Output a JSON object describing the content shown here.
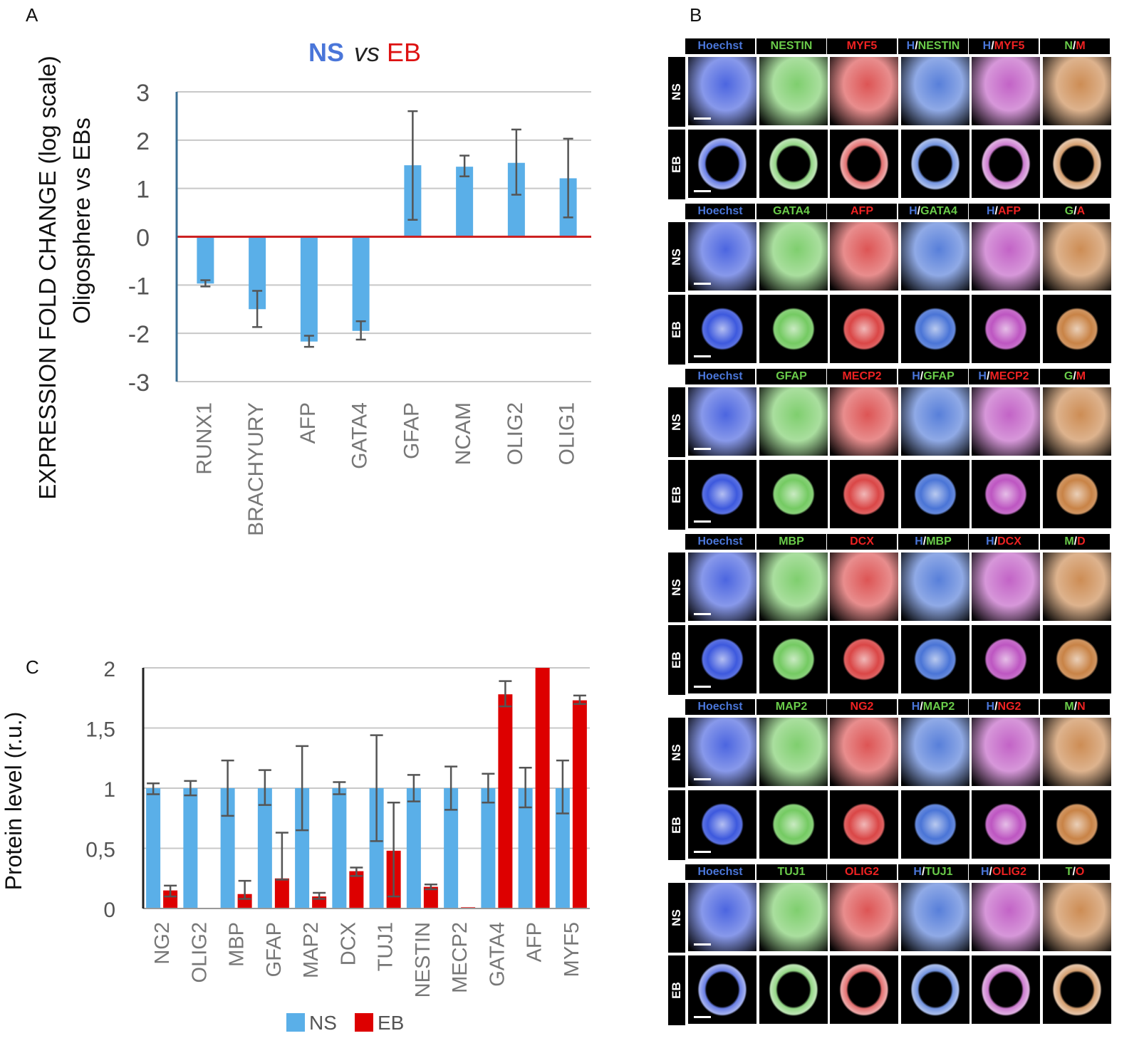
{
  "panels": {
    "a": "A",
    "b": "B",
    "c": "C"
  },
  "chart_data": [
    {
      "type": "bar",
      "title": {
        "ns": "NS",
        "vs": "vs",
        "eb": "EB"
      },
      "ylabel": [
        "EXPRESSION FOLD CHANGE (log scale)",
        "Oligosphere vs EBs"
      ],
      "xlabel": "",
      "ylim": [
        -3,
        3
      ],
      "yticks": [
        "-3",
        "-2",
        "-1",
        "0",
        "1",
        "2",
        "3"
      ],
      "categories": [
        "RUNX1",
        "BRACHYURY",
        "AFP",
        "GATA4",
        "GFAP",
        "NCAM",
        "OLIG2",
        "OLIG1"
      ],
      "values": [
        -0.97,
        -1.5,
        -2.17,
        -1.95,
        1.48,
        1.45,
        1.53,
        1.21
      ],
      "error_low": [
        -1.03,
        -1.87,
        -2.28,
        -2.13,
        0.35,
        1.25,
        0.87,
        0.4
      ],
      "error_high": [
        -0.9,
        -1.12,
        -2.05,
        -1.75,
        2.6,
        1.68,
        2.22,
        2.03
      ],
      "colors": {
        "bar": "#5aafe8",
        "zero_line": "#cc2222",
        "axis": "#3a6f95",
        "error": "#555555"
      }
    },
    {
      "type": "bar",
      "ylabel": "Protein level (r.u.)",
      "ylim": [
        0,
        2
      ],
      "yticks": [
        "0",
        "0,5",
        "1",
        "1,5",
        "2"
      ],
      "categories": [
        "NG2",
        "OLIG2",
        "MBP",
        "GFAP",
        "MAP2",
        "DCX",
        "TUJ1",
        "NESTIN",
        "MECP2",
        "GATA4",
        "AFP",
        "MYF5"
      ],
      "legend": [
        "NS",
        "EB"
      ],
      "series": [
        {
          "name": "NS",
          "color": "#5aafe8",
          "values": [
            1,
            1,
            1,
            1,
            1,
            1,
            1,
            1,
            1,
            1,
            1,
            1
          ],
          "error_low": [
            0.95,
            0.94,
            0.77,
            0.86,
            0.65,
            0.95,
            0.56,
            0.89,
            0.82,
            0.88,
            0.84,
            0.79
          ],
          "error_high": [
            1.04,
            1.06,
            1.23,
            1.15,
            1.35,
            1.05,
            1.44,
            1.11,
            1.18,
            1.12,
            1.17,
            1.23
          ]
        },
        {
          "name": "EB",
          "color": "#dd0000",
          "values": [
            0.15,
            0,
            0.12,
            0.25,
            0.1,
            0.31,
            0.48,
            0.18,
            0.01,
            1.78,
            2,
            1.73
          ],
          "error_low": [
            0.1,
            null,
            0.08,
            0.24,
            0.08,
            0.27,
            0.1,
            0.16,
            null,
            1.68,
            null,
            1.7
          ],
          "error_high": [
            0.19,
            null,
            0.23,
            0.63,
            0.13,
            0.34,
            0.88,
            0.2,
            null,
            1.89,
            null,
            1.77
          ]
        }
      ]
    }
  ],
  "image_grid": {
    "row_labels": [
      "NS",
      "EB"
    ],
    "groups": [
      {
        "headers": [
          {
            "parts": [
              {
                "t": "Hoechst",
                "c": "blue"
              }
            ]
          },
          {
            "parts": [
              {
                "t": "NESTIN",
                "c": "green"
              }
            ]
          },
          {
            "parts": [
              {
                "t": "MYF5",
                "c": "red"
              }
            ]
          },
          {
            "parts": [
              {
                "t": "H",
                "c": "blue"
              },
              {
                "t": "/",
                "c": "white"
              },
              {
                "t": "NESTIN",
                "c": "green"
              }
            ]
          },
          {
            "parts": [
              {
                "t": "H",
                "c": "blue"
              },
              {
                "t": "/",
                "c": "white"
              },
              {
                "t": "MYF5",
                "c": "red"
              }
            ]
          },
          {
            "parts": [
              {
                "t": "N",
                "c": "green"
              },
              {
                "t": "/",
                "c": "white"
              },
              {
                "t": "M",
                "c": "red"
              }
            ]
          }
        ],
        "shape": [
          "tissue",
          "ring"
        ]
      },
      {
        "headers": [
          {
            "parts": [
              {
                "t": "Hoechst",
                "c": "blue"
              }
            ]
          },
          {
            "parts": [
              {
                "t": "GATA4",
                "c": "green"
              }
            ]
          },
          {
            "parts": [
              {
                "t": "AFP",
                "c": "red"
              }
            ]
          },
          {
            "parts": [
              {
                "t": "H",
                "c": "blue"
              },
              {
                "t": "/",
                "c": "white"
              },
              {
                "t": "GATA4",
                "c": "green"
              }
            ]
          },
          {
            "parts": [
              {
                "t": "H",
                "c": "blue"
              },
              {
                "t": "/",
                "c": "white"
              },
              {
                "t": "AFP",
                "c": "red"
              }
            ]
          },
          {
            "parts": [
              {
                "t": "G",
                "c": "green"
              },
              {
                "t": "/",
                "c": "white"
              },
              {
                "t": "A",
                "c": "red"
              }
            ]
          }
        ],
        "shape": [
          "tissue",
          "sphere"
        ]
      },
      {
        "headers": [
          {
            "parts": [
              {
                "t": "Hoechst",
                "c": "blue"
              }
            ]
          },
          {
            "parts": [
              {
                "t": "GFAP",
                "c": "green"
              }
            ]
          },
          {
            "parts": [
              {
                "t": "MECP2",
                "c": "red"
              }
            ]
          },
          {
            "parts": [
              {
                "t": "H",
                "c": "blue"
              },
              {
                "t": "/",
                "c": "white"
              },
              {
                "t": "GFAP",
                "c": "green"
              }
            ]
          },
          {
            "parts": [
              {
                "t": "H",
                "c": "blue"
              },
              {
                "t": "/",
                "c": "white"
              },
              {
                "t": "MECP2",
                "c": "red"
              }
            ]
          },
          {
            "parts": [
              {
                "t": "G",
                "c": "green"
              },
              {
                "t": "/",
                "c": "white"
              },
              {
                "t": "M",
                "c": "red"
              }
            ]
          }
        ],
        "shape": [
          "tissue",
          "sphere"
        ]
      },
      {
        "headers": [
          {
            "parts": [
              {
                "t": "Hoechst",
                "c": "blue"
              }
            ]
          },
          {
            "parts": [
              {
                "t": "MBP",
                "c": "green"
              }
            ]
          },
          {
            "parts": [
              {
                "t": "DCX",
                "c": "red"
              }
            ]
          },
          {
            "parts": [
              {
                "t": "H",
                "c": "blue"
              },
              {
                "t": "/",
                "c": "white"
              },
              {
                "t": "MBP",
                "c": "green"
              }
            ]
          },
          {
            "parts": [
              {
                "t": "H",
                "c": "blue"
              },
              {
                "t": "/",
                "c": "white"
              },
              {
                "t": "DCX",
                "c": "red"
              }
            ]
          },
          {
            "parts": [
              {
                "t": "M",
                "c": "green"
              },
              {
                "t": "/",
                "c": "white"
              },
              {
                "t": "D",
                "c": "red"
              }
            ]
          }
        ],
        "shape": [
          "tissue",
          "sphere"
        ]
      },
      {
        "headers": [
          {
            "parts": [
              {
                "t": "Hoechst",
                "c": "blue"
              }
            ]
          },
          {
            "parts": [
              {
                "t": "MAP2",
                "c": "green"
              }
            ]
          },
          {
            "parts": [
              {
                "t": "NG2",
                "c": "red"
              }
            ]
          },
          {
            "parts": [
              {
                "t": "H",
                "c": "blue"
              },
              {
                "t": "/",
                "c": "white"
              },
              {
                "t": "MAP2",
                "c": "green"
              }
            ]
          },
          {
            "parts": [
              {
                "t": "H",
                "c": "blue"
              },
              {
                "t": "/",
                "c": "white"
              },
              {
                "t": "NG2",
                "c": "red"
              }
            ]
          },
          {
            "parts": [
              {
                "t": "M",
                "c": "green"
              },
              {
                "t": "/",
                "c": "white"
              },
              {
                "t": "N",
                "c": "red"
              }
            ]
          }
        ],
        "shape": [
          "tissue",
          "sphere"
        ]
      },
      {
        "headers": [
          {
            "parts": [
              {
                "t": "Hoechst",
                "c": "blue"
              }
            ]
          },
          {
            "parts": [
              {
                "t": "TUJ1",
                "c": "green"
              }
            ]
          },
          {
            "parts": [
              {
                "t": "OLIG2",
                "c": "red"
              }
            ]
          },
          {
            "parts": [
              {
                "t": "H",
                "c": "blue"
              },
              {
                "t": "/",
                "c": "white"
              },
              {
                "t": "TUJ1",
                "c": "green"
              }
            ]
          },
          {
            "parts": [
              {
                "t": "H",
                "c": "blue"
              },
              {
                "t": "/",
                "c": "white"
              },
              {
                "t": "OLIG2",
                "c": "red"
              }
            ]
          },
          {
            "parts": [
              {
                "t": "T",
                "c": "green"
              },
              {
                "t": "/",
                "c": "white"
              },
              {
                "t": "O",
                "c": "red"
              }
            ]
          }
        ],
        "shape": [
          "tissue",
          "ring"
        ]
      }
    ],
    "channel_colors": [
      "#1f3fd8",
      "#5fc24a",
      "#d42a2a",
      "#2e5fd0",
      "#b33cb8",
      "#c0702a"
    ]
  }
}
